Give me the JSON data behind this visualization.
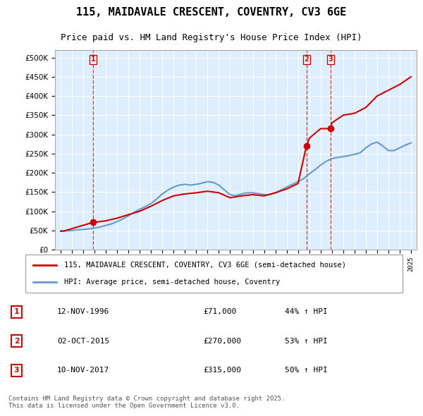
{
  "title": "115, MAIDAVALE CRESCENT, COVENTRY, CV3 6GE",
  "subtitle": "Price paid vs. HM Land Registry's House Price Index (HPI)",
  "legend_label_red": "115, MAIDAVALE CRESCENT, COVENTRY, CV3 6GE (semi-detached house)",
  "legend_label_blue": "HPI: Average price, semi-detached house, Coventry",
  "footer": "Contains HM Land Registry data © Crown copyright and database right 2025.\nThis data is licensed under the Open Government Licence v3.0.",
  "transactions": [
    {
      "label": "1",
      "date": "12-NOV-1996",
      "price": 71000,
      "hpi_pct": "44% ↑ HPI",
      "year": 1996.87
    },
    {
      "label": "2",
      "date": "02-OCT-2015",
      "price": 270000,
      "hpi_pct": "53% ↑ HPI",
      "year": 2015.75
    },
    {
      "label": "3",
      "date": "10-NOV-2017",
      "price": 315000,
      "hpi_pct": "50% ↑ HPI",
      "year": 2017.87
    }
  ],
  "red_color": "#cc0000",
  "blue_color": "#6699cc",
  "dashed_color": "#cc0000",
  "bg_color": "#ffffff",
  "plot_bg_color": "#ddeeff",
  "grid_color": "#ffffff",
  "ylim": [
    0,
    520000
  ],
  "yticks": [
    0,
    50000,
    100000,
    150000,
    200000,
    250000,
    300000,
    350000,
    400000,
    450000,
    500000
  ],
  "xlabel_start_year": 1994,
  "xlabel_end_year": 2025,
  "hpi_data_x": [
    1994,
    1994.5,
    1995,
    1995.5,
    1996,
    1996.5,
    1997,
    1997.5,
    1998,
    1998.5,
    1999,
    1999.5,
    2000,
    2000.5,
    2001,
    2001.5,
    2002,
    2002.5,
    2003,
    2003.5,
    2004,
    2004.5,
    2005,
    2005.5,
    2006,
    2006.5,
    2007,
    2007.5,
    2008,
    2008.5,
    2009,
    2009.5,
    2010,
    2010.5,
    2011,
    2011.5,
    2012,
    2012.5,
    2013,
    2013.5,
    2014,
    2014.5,
    2015,
    2015.5,
    2016,
    2016.5,
    2017,
    2017.5,
    2018,
    2018.5,
    2019,
    2019.5,
    2020,
    2020.5,
    2021,
    2021.5,
    2022,
    2022.5,
    2023,
    2023.5,
    2024,
    2024.5,
    2025
  ],
  "hpi_data_y": [
    48000,
    49000,
    50000,
    51500,
    52500,
    54000,
    56000,
    59000,
    63000,
    67000,
    73000,
    80000,
    88000,
    97000,
    105000,
    112000,
    120000,
    132000,
    145000,
    155000,
    163000,
    168000,
    170000,
    168000,
    170000,
    173000,
    177000,
    175000,
    168000,
    155000,
    143000,
    140000,
    145000,
    148000,
    148000,
    146000,
    143000,
    143000,
    148000,
    155000,
    163000,
    170000,
    177000,
    185000,
    197000,
    208000,
    220000,
    230000,
    237000,
    240000,
    242000,
    245000,
    248000,
    252000,
    265000,
    275000,
    280000,
    270000,
    258000,
    258000,
    265000,
    272000,
    278000
  ],
  "red_data_x": [
    1994,
    1994.3,
    1996.87,
    1997.2,
    1998,
    1999,
    2000,
    2001,
    2002,
    2003,
    2004,
    2005,
    2006,
    2007,
    2008,
    2009,
    2010,
    2011,
    2012,
    2013,
    2014,
    2015,
    2015.75,
    2016,
    2017,
    2017.87,
    2018,
    2019,
    2020,
    2021,
    2022,
    2023,
    2024,
    2024.5,
    2025
  ],
  "red_data_y": [
    48000,
    48500,
    71000,
    72000,
    75000,
    82000,
    91000,
    100000,
    113000,
    128000,
    140000,
    145000,
    148000,
    152000,
    148000,
    135000,
    140000,
    143000,
    140000,
    148000,
    158000,
    172000,
    270000,
    290000,
    315000,
    315000,
    330000,
    350000,
    355000,
    370000,
    400000,
    415000,
    430000,
    440000,
    450000
  ]
}
